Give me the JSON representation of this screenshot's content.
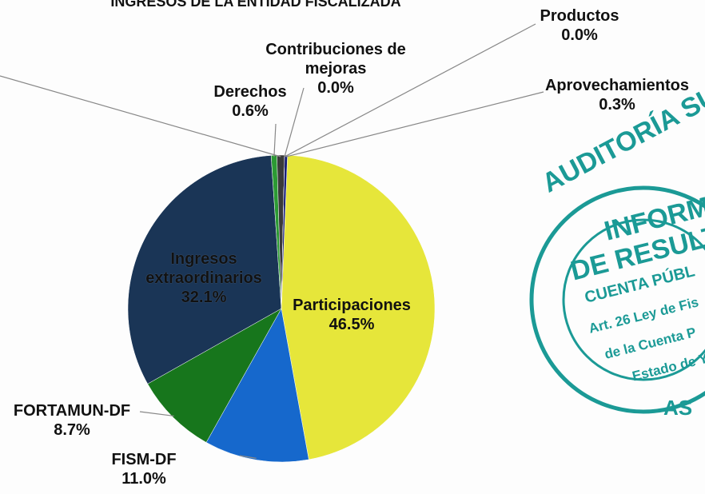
{
  "chart_data": {
    "type": "pie",
    "title": "INGRESOS DE LA ENTIDAD FISCALIZADA",
    "categories": [
      "Participaciones",
      "FISM-DF",
      "FORTAMUN-DF",
      "Ingresos extraordinarios",
      "Derechos",
      null,
      "Contribuciones de mejoras",
      "Productos",
      "Aprovechamientos"
    ],
    "values": [
      46.5,
      11.0,
      8.7,
      32.1,
      0.6,
      0.8,
      0.0,
      0.0,
      0.3
    ],
    "value_labels": [
      "46.5%",
      "11.0%",
      "8.7%",
      "32.1%",
      "0.6%",
      null,
      "0.0%",
      "0.0%",
      "0.3%"
    ],
    "colors": [
      "#e6e63a",
      "#1668cc",
      "#17761c",
      "#1a3556",
      "#2c9a34",
      "#3a3a3a",
      "#222266",
      "#1c2a8a",
      "#1a2078"
    ]
  },
  "stamp": {
    "ring_text": "AUDITORÍA SUPERIOR DEL E",
    "lines": [
      "INFORM",
      "DE RESULT",
      "CUENTA PÚBL",
      "Art. 26 Ley de Fis",
      "de la Cuenta P",
      "Estado de Y"
    ],
    "footer": "AS"
  }
}
